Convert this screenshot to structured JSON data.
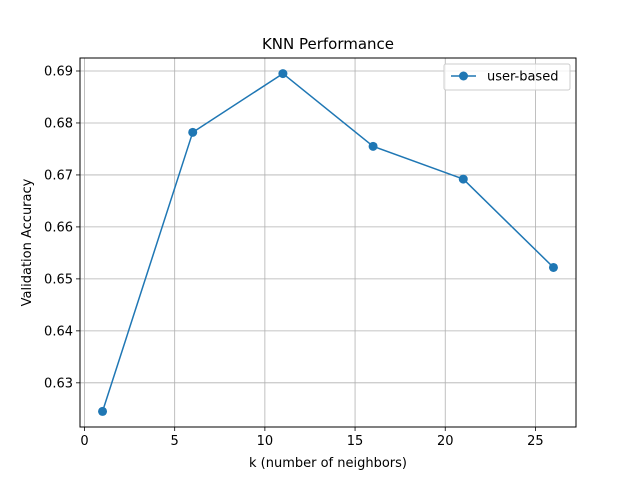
{
  "chart_data": {
    "type": "line",
    "title": "KNN Performance",
    "xlabel": "k (number of neighbors)",
    "ylabel": "Validation Accuracy",
    "xlim": [
      -0.25,
      27.25
    ],
    "ylim": [
      0.6215,
      0.6925
    ],
    "xticks": [
      0,
      5,
      10,
      15,
      20,
      25
    ],
    "xtick_labels": [
      "0",
      "5",
      "10",
      "15",
      "20",
      "25"
    ],
    "yticks": [
      0.63,
      0.64,
      0.65,
      0.66,
      0.67,
      0.68,
      0.69
    ],
    "ytick_labels": [
      "0.63",
      "0.64",
      "0.65",
      "0.66",
      "0.67",
      "0.68",
      "0.69"
    ],
    "grid": true,
    "legend_position": "top-right",
    "series": [
      {
        "name": "user-based",
        "color": "#1f77b4",
        "marker": "circle",
        "x": [
          1,
          6,
          11,
          16,
          21,
          26
        ],
        "y": [
          0.6245,
          0.6782,
          0.6895,
          0.6755,
          0.6692,
          0.6522
        ]
      }
    ]
  }
}
